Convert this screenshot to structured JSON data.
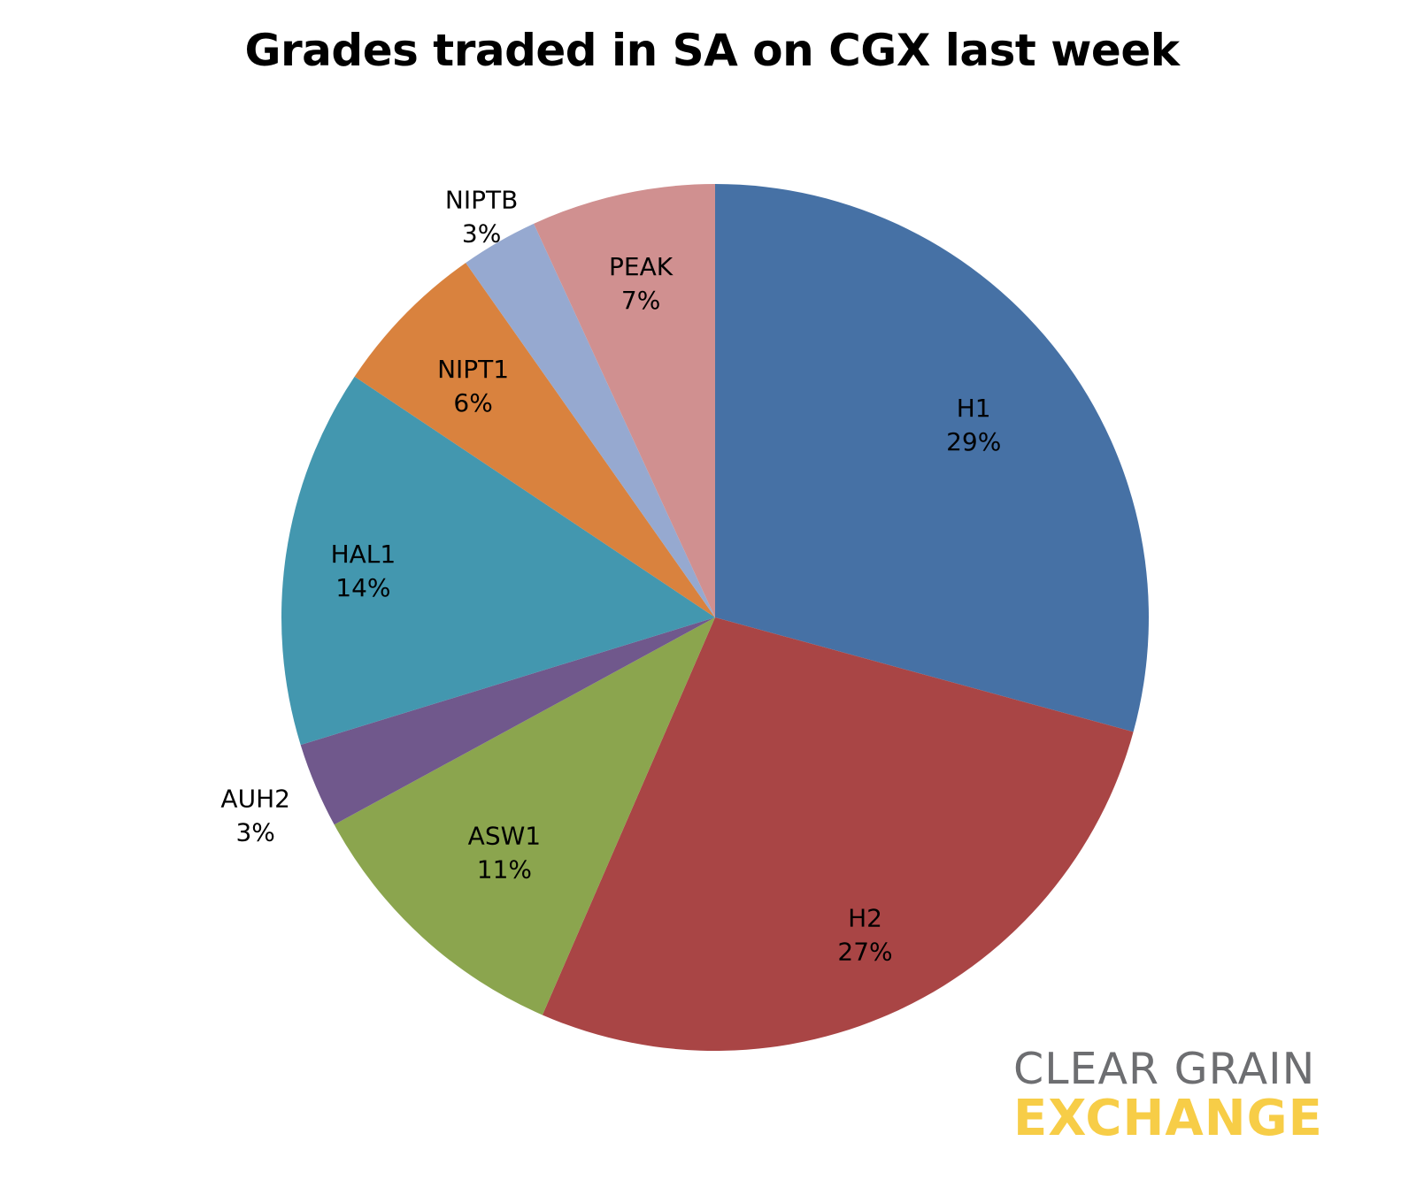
{
  "chart_data": {
    "type": "pie",
    "title": "Grades traded in SA on CGX last week",
    "start": "top",
    "direction": "clockwise",
    "slices": [
      {
        "label": "H1",
        "pct_label": "29%",
        "value": 29.4,
        "color": "#4671a5"
      },
      {
        "label": "H2",
        "pct_label": "27%",
        "value": 27.4,
        "color": "#a94545"
      },
      {
        "label": "ASW1",
        "pct_label": "11%",
        "value": 10.6,
        "color": "#8ba54e"
      },
      {
        "label": "AUH2",
        "pct_label": "3%",
        "value": 3.2,
        "color": "#70588c"
      },
      {
        "label": "HAL1",
        "pct_label": "14%",
        "value": 14.2,
        "color": "#4397af"
      },
      {
        "label": "NIPT1",
        "pct_label": "6%",
        "value": 5.9,
        "color": "#d9823e"
      },
      {
        "label": "NIPTB",
        "pct_label": "3%",
        "value": 2.9,
        "color": "#96a9d0"
      },
      {
        "label": "PEAK",
        "pct_label": "7%",
        "value": 6.9,
        "color": "#d09090"
      }
    ]
  },
  "logo": {
    "line1": "CLEAR GRAIN",
    "line2": "EXCHANGE",
    "line1_color": "#6d6e71",
    "line2_color": "#f7cd47"
  }
}
